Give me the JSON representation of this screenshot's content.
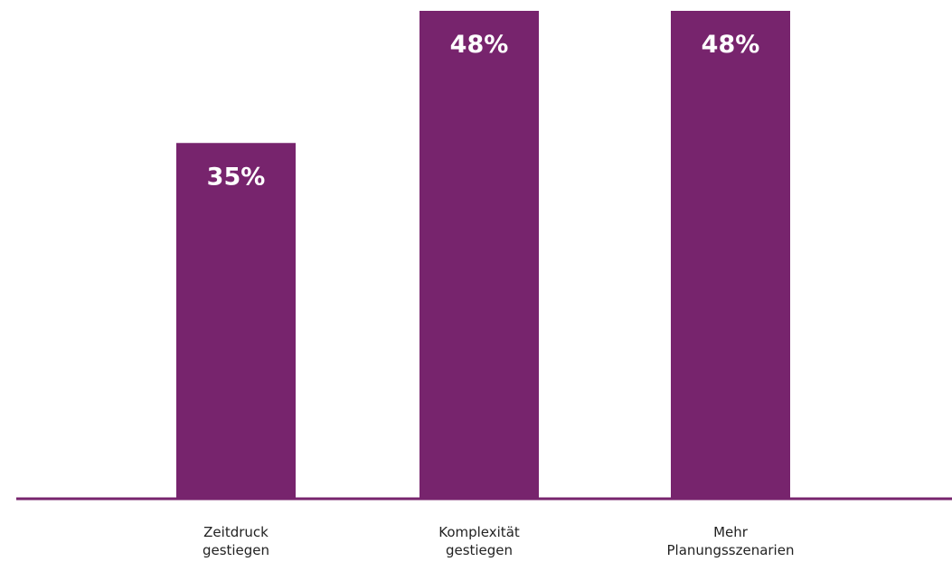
{
  "chart_data": {
    "type": "bar",
    "categories": [
      [
        "Zeitdruck",
        "gestiegen"
      ],
      [
        "Komplexität",
        "gestiegen"
      ],
      [
        "Mehr",
        "Planungsszenarien"
      ]
    ],
    "values": [
      35,
      48,
      48
    ],
    "value_labels": [
      "35%",
      "48%",
      "48%"
    ],
    "ylim": [
      0,
      48
    ],
    "grid": false,
    "legend": "none",
    "colors": {
      "bar": "#77246d",
      "axis": "#77246d",
      "value_text": "#ffffff",
      "label_text": "#222222"
    }
  }
}
